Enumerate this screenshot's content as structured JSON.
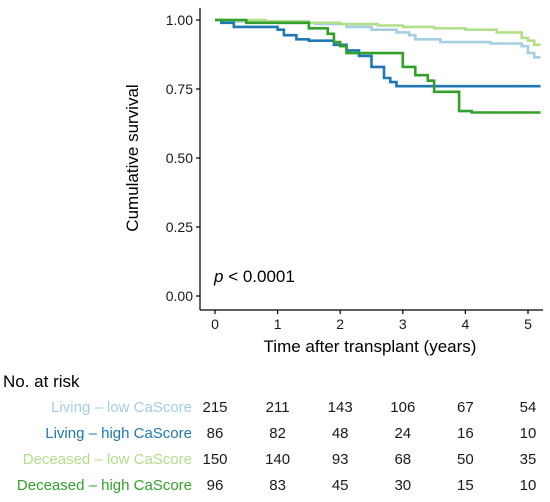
{
  "chart_data": {
    "type": "line",
    "step": true,
    "xlabel": "Time after transplant (years)",
    "ylabel": "Cumulative survival",
    "xlim": [
      0,
      5.2
    ],
    "ylim": [
      0,
      1
    ],
    "x_ticks": [
      "0",
      "1",
      "2",
      "3",
      "4",
      "5"
    ],
    "y_ticks": [
      "0.00",
      "0.25",
      "0.50",
      "0.75",
      "1.00"
    ],
    "annotation": {
      "p": "p",
      "rest": " < 0.0001"
    },
    "series": [
      {
        "name": "Living – low CaScore",
        "color": "#a6cee3",
        "points": [
          [
            0,
            1
          ],
          [
            0.3,
            0.995
          ],
          [
            1.0,
            0.99
          ],
          [
            1.6,
            0.985
          ],
          [
            2.1,
            0.975
          ],
          [
            2.5,
            0.965
          ],
          [
            2.9,
            0.955
          ],
          [
            3.1,
            0.945
          ],
          [
            3.2,
            0.93
          ],
          [
            3.6,
            0.92
          ],
          [
            4.4,
            0.915
          ],
          [
            4.9,
            0.905
          ],
          [
            5.0,
            0.88
          ],
          [
            5.1,
            0.865
          ],
          [
            5.2,
            0.865
          ]
        ]
      },
      {
        "name": "Living – high CaScore",
        "color": "#1f78b4",
        "points": [
          [
            0,
            1
          ],
          [
            0.1,
            0.99
          ],
          [
            0.3,
            0.975
          ],
          [
            1.0,
            0.965
          ],
          [
            1.1,
            0.945
          ],
          [
            1.3,
            0.93
          ],
          [
            1.5,
            0.925
          ],
          [
            1.9,
            0.91
          ],
          [
            2.1,
            0.89
          ],
          [
            2.3,
            0.87
          ],
          [
            2.5,
            0.83
          ],
          [
            2.7,
            0.79
          ],
          [
            2.8,
            0.775
          ],
          [
            2.9,
            0.76
          ],
          [
            3.4,
            0.76
          ],
          [
            5.2,
            0.76
          ]
        ]
      },
      {
        "name": "Deceased – low CaScore",
        "color": "#b2df8a",
        "points": [
          [
            0,
            1
          ],
          [
            0.8,
            0.995
          ],
          [
            1.5,
            0.99
          ],
          [
            2.0,
            0.985
          ],
          [
            2.6,
            0.98
          ],
          [
            3.0,
            0.975
          ],
          [
            3.5,
            0.97
          ],
          [
            4.0,
            0.965
          ],
          [
            4.5,
            0.955
          ],
          [
            4.9,
            0.935
          ],
          [
            5.0,
            0.925
          ],
          [
            5.1,
            0.91
          ],
          [
            5.2,
            0.91
          ]
        ]
      },
      {
        "name": "Deceased – high CaScore",
        "color": "#33a02c",
        "points": [
          [
            0,
            1
          ],
          [
            0.5,
            0.99
          ],
          [
            1.5,
            0.97
          ],
          [
            1.8,
            0.95
          ],
          [
            1.9,
            0.92
          ],
          [
            2.0,
            0.905
          ],
          [
            2.1,
            0.88
          ],
          [
            3.0,
            0.83
          ],
          [
            3.2,
            0.8
          ],
          [
            3.4,
            0.78
          ],
          [
            3.5,
            0.74
          ],
          [
            3.9,
            0.67
          ],
          [
            4.1,
            0.665
          ],
          [
            5.2,
            0.665
          ]
        ]
      }
    ]
  },
  "risk_table": {
    "title": "No. at risk",
    "rows": [
      {
        "label": "Living – low CaScore",
        "color": "#a6cee3",
        "values": [
          "215",
          "211",
          "143",
          "106",
          "67",
          "54"
        ]
      },
      {
        "label": "Living – high CaScore",
        "color": "#1f78b4",
        "values": [
          "86",
          "82",
          "48",
          "24",
          "16",
          "10"
        ]
      },
      {
        "label": "Deceased – low CaScore",
        "color": "#b2df8a",
        "values": [
          "150",
          "140",
          "93",
          "68",
          "50",
          "35"
        ]
      },
      {
        "label": "Deceased – high CaScore",
        "color": "#33a02c",
        "values": [
          "96",
          "83",
          "45",
          "30",
          "15",
          "10"
        ]
      }
    ]
  }
}
